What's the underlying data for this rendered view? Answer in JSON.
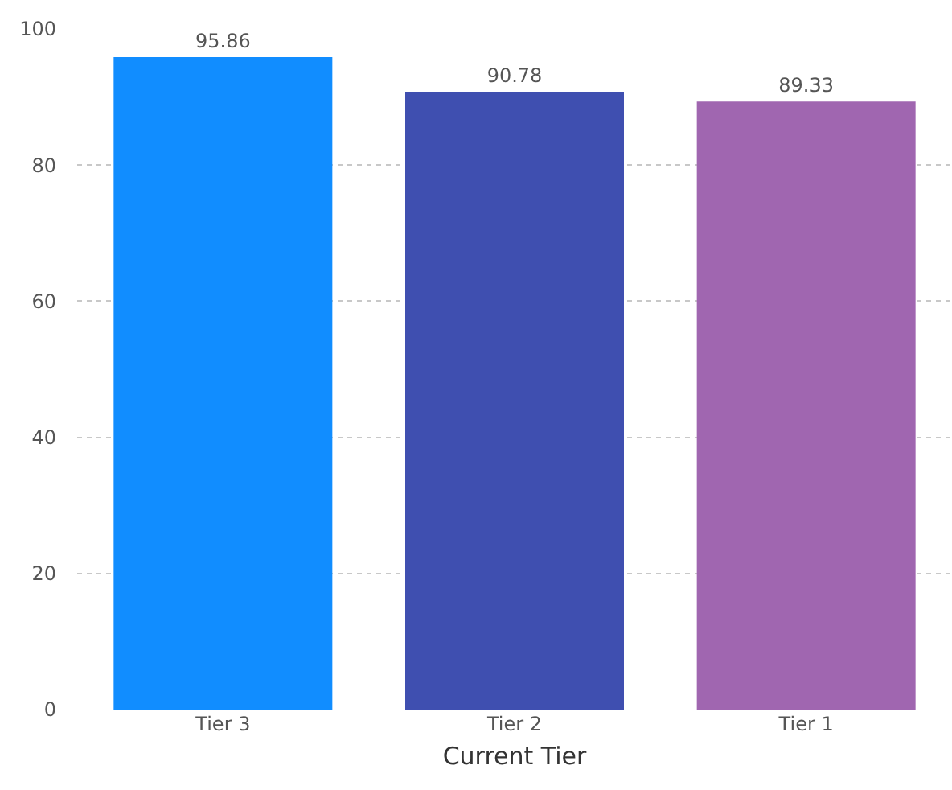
{
  "chart_data": {
    "type": "bar",
    "xlabel": "Current Tier",
    "categories": [
      "Tier 3",
      "Tier 2",
      "Tier 1"
    ],
    "values": [
      95.86,
      90.78,
      89.33
    ],
    "colors": [
      "#118dff",
      "#3f4fb0",
      "#a066b0"
    ],
    "ylim": [
      0,
      100
    ],
    "yticks": [
      0,
      20,
      40,
      60,
      80,
      100
    ],
    "grid": "y",
    "data_labels": true
  }
}
